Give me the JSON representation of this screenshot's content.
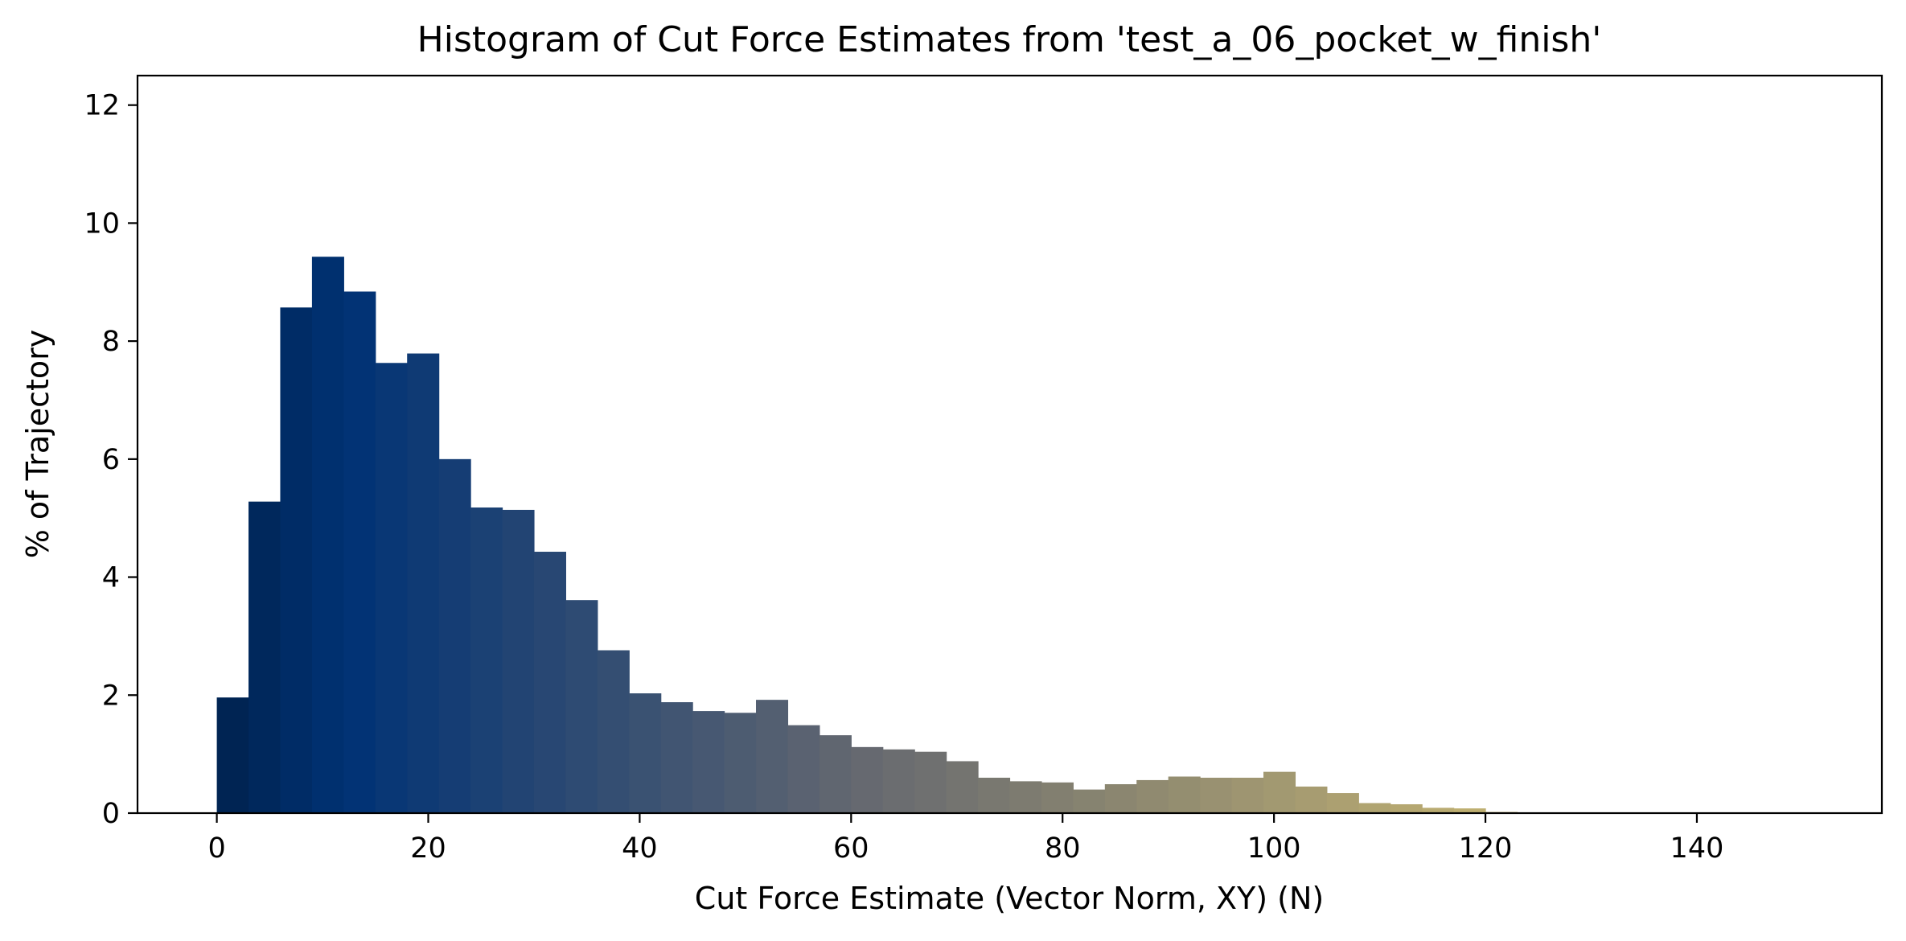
{
  "chart_data": {
    "type": "bar",
    "title": "Histogram of Cut Force Estimates from 'test_a_06_pocket_w_finish'",
    "xlabel": "Cut Force Estimate (Vector Norm, XY) (N)",
    "ylabel": "% of Trajectory",
    "xlim": [
      -7.5,
      157.5
    ],
    "ylim": [
      0,
      12.5
    ],
    "xticks": [
      0,
      20,
      40,
      60,
      80,
      100,
      120,
      140
    ],
    "yticks": [
      0,
      2,
      4,
      6,
      8,
      10,
      12
    ],
    "bin_width": 3,
    "bin_start": 0,
    "values": [
      1.96,
      5.28,
      8.57,
      9.43,
      8.84,
      7.63,
      7.79,
      6.0,
      5.18,
      5.14,
      4.43,
      3.61,
      2.76,
      2.03,
      1.88,
      1.73,
      1.7,
      1.92,
      1.49,
      1.32,
      1.12,
      1.08,
      1.04,
      0.88,
      0.6,
      0.54,
      0.52,
      0.4,
      0.49,
      0.56,
      0.62,
      0.6,
      0.6,
      0.7,
      0.45,
      0.34,
      0.17,
      0.15,
      0.09,
      0.08,
      0.02
    ],
    "colors": {
      "start": "#00224e",
      "peak": "#003275",
      "mid": "#666970",
      "end": "#c5b471"
    },
    "grid": false,
    "legend": "none"
  }
}
